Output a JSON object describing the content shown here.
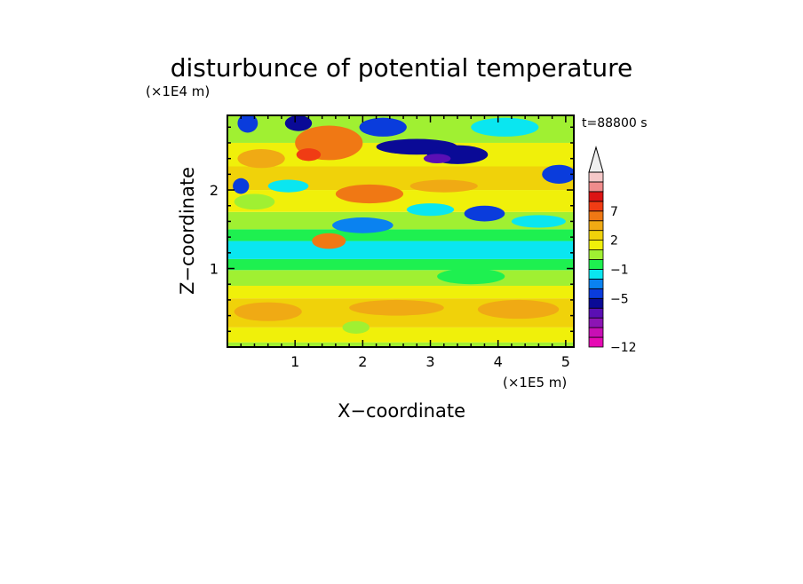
{
  "chart_data": {
    "type": "heatmap",
    "title": "disturbunce of potential temperature",
    "xlabel": "X−coordinate",
    "ylabel": "Z−coordinate",
    "x_unit": "(×1E5 m)",
    "y_unit": "(×1E4 m)",
    "time_label": "t=88800 s",
    "xlim": [
      0,
      5.12
    ],
    "ylim": [
      0,
      2.95
    ],
    "x_ticks": [
      {
        "v": 1,
        "label": "1"
      },
      {
        "v": 2,
        "label": "2"
      },
      {
        "v": 3,
        "label": "3"
      },
      {
        "v": 4,
        "label": "4"
      },
      {
        "v": 5,
        "label": "5"
      }
    ],
    "y_ticks": [
      {
        "v": 1,
        "label": "1"
      },
      {
        "v": 2,
        "label": "2"
      }
    ],
    "colorbar": {
      "colors": [
        "#e60ab4",
        "#c80fb4",
        "#8c14b4",
        "#5a0fb4",
        "#0a0a96",
        "#0a3cdc",
        "#0a82f0",
        "#0ae6f0",
        "#1ef050",
        "#a0f032",
        "#f0f00a",
        "#f0d20a",
        "#f0aa14",
        "#f07814",
        "#f03c14",
        "#dc1414",
        "#f08c8c",
        "#f5c8c8",
        "#f0f0f0"
      ],
      "labels": [
        {
          "level": 0,
          "label": "−12"
        },
        {
          "level": 5,
          "label": "−5"
        },
        {
          "level": 8,
          "label": "−1"
        },
        {
          "level": 11,
          "label": "2"
        },
        {
          "level": 14,
          "label": "7"
        }
      ]
    },
    "field_description_levels": "Colour index per cell (0 = lowest bin, 18 = highest); bins follow colorbar.colors",
    "bands": [
      {
        "z": [
          0.0,
          0.06
        ],
        "level": 9
      },
      {
        "z": [
          0.06,
          0.25
        ],
        "level": 10
      },
      {
        "z": [
          0.25,
          0.62
        ],
        "level": 11
      },
      {
        "z": [
          0.62,
          0.78
        ],
        "level": 10
      },
      {
        "z": [
          0.78,
          0.98
        ],
        "level": 9
      },
      {
        "z": [
          0.98,
          1.12
        ],
        "level": 8
      },
      {
        "z": [
          1.12,
          1.35
        ],
        "level": 7
      },
      {
        "z": [
          1.35,
          1.5
        ],
        "level": 8
      },
      {
        "z": [
          1.5,
          1.72
        ],
        "level": 9
      },
      {
        "z": [
          1.72,
          2.0
        ],
        "level": 10
      },
      {
        "z": [
          2.0,
          2.3
        ],
        "level": 11
      },
      {
        "z": [
          2.3,
          2.6
        ],
        "level": 10
      },
      {
        "z": [
          2.6,
          2.95
        ],
        "level": 9
      }
    ],
    "blobs": [
      {
        "x": 0.6,
        "z": 0.45,
        "rx": 0.5,
        "rz": 0.12,
        "level": 12
      },
      {
        "x": 2.5,
        "z": 0.5,
        "rx": 0.7,
        "rz": 0.1,
        "level": 12
      },
      {
        "x": 4.3,
        "z": 0.48,
        "rx": 0.6,
        "rz": 0.12,
        "level": 12
      },
      {
        "x": 1.9,
        "z": 0.25,
        "rx": 0.2,
        "rz": 0.08,
        "level": 9
      },
      {
        "x": 3.6,
        "z": 0.9,
        "rx": 0.5,
        "rz": 0.1,
        "level": 8
      },
      {
        "x": 0.3,
        "z": 2.85,
        "rx": 0.15,
        "rz": 0.12,
        "level": 5
      },
      {
        "x": 1.05,
        "z": 2.85,
        "rx": 0.2,
        "rz": 0.1,
        "level": 4
      },
      {
        "x": 1.5,
        "z": 2.6,
        "rx": 0.5,
        "rz": 0.22,
        "level": 13
      },
      {
        "x": 1.2,
        "z": 2.45,
        "rx": 0.18,
        "rz": 0.08,
        "level": 14
      },
      {
        "x": 0.5,
        "z": 2.4,
        "rx": 0.35,
        "rz": 0.12,
        "level": 12
      },
      {
        "x": 0.2,
        "z": 2.05,
        "rx": 0.12,
        "rz": 0.1,
        "level": 5
      },
      {
        "x": 0.9,
        "z": 2.05,
        "rx": 0.3,
        "rz": 0.08,
        "level": 7
      },
      {
        "x": 2.3,
        "z": 2.8,
        "rx": 0.35,
        "rz": 0.12,
        "level": 5
      },
      {
        "x": 2.8,
        "z": 2.55,
        "rx": 0.6,
        "rz": 0.1,
        "level": 4
      },
      {
        "x": 3.4,
        "z": 2.45,
        "rx": 0.45,
        "rz": 0.12,
        "level": 4
      },
      {
        "x": 3.1,
        "z": 2.4,
        "rx": 0.2,
        "rz": 0.06,
        "level": 3
      },
      {
        "x": 4.1,
        "z": 2.8,
        "rx": 0.5,
        "rz": 0.12,
        "level": 7
      },
      {
        "x": 4.9,
        "z": 2.2,
        "rx": 0.25,
        "rz": 0.12,
        "level": 5
      },
      {
        "x": 2.1,
        "z": 1.95,
        "rx": 0.5,
        "rz": 0.12,
        "level": 13
      },
      {
        "x": 3.2,
        "z": 2.05,
        "rx": 0.5,
        "rz": 0.08,
        "level": 12
      },
      {
        "x": 2.0,
        "z": 1.55,
        "rx": 0.45,
        "rz": 0.1,
        "level": 6
      },
      {
        "x": 3.0,
        "z": 1.75,
        "rx": 0.35,
        "rz": 0.08,
        "level": 7
      },
      {
        "x": 3.8,
        "z": 1.7,
        "rx": 0.3,
        "rz": 0.1,
        "level": 5
      },
      {
        "x": 4.6,
        "z": 1.6,
        "rx": 0.4,
        "rz": 0.08,
        "level": 7
      },
      {
        "x": 1.5,
        "z": 1.35,
        "rx": 0.25,
        "rz": 0.1,
        "level": 13
      },
      {
        "x": 0.4,
        "z": 1.85,
        "rx": 0.3,
        "rz": 0.1,
        "level": 9
      }
    ]
  }
}
